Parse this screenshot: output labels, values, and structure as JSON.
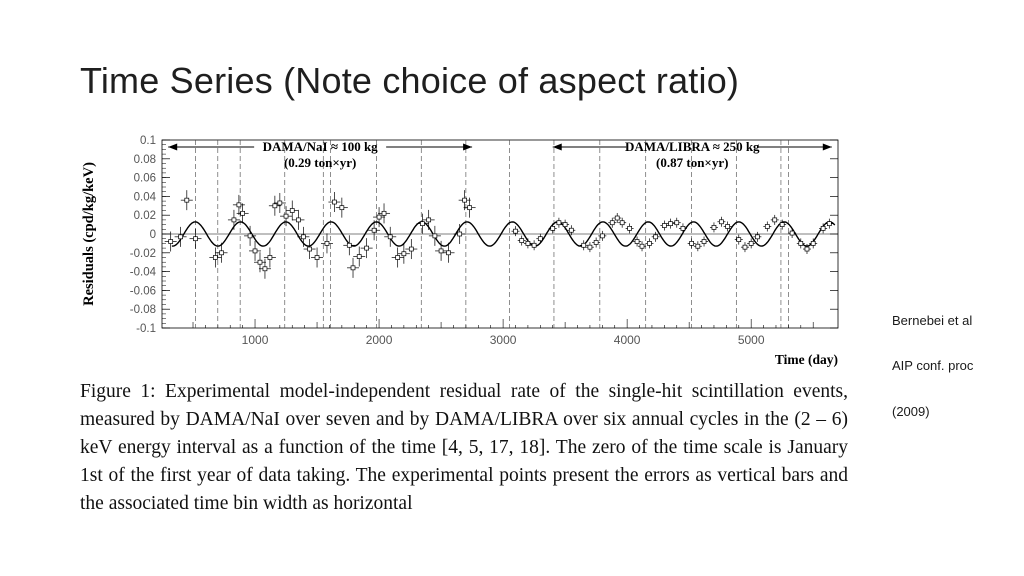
{
  "slide": {
    "title": "Time Series (Note choice of aspect ratio)",
    "side_notes": [
      "Bernebei et al",
      "AIP conf. proc",
      "(2009)"
    ]
  },
  "figure": {
    "top_label": "",
    "caption": "Figure 1: Experimental model-independent residual rate of the single-hit scintillation events, measured by DAMA/NaI over seven and by DAMA/LIBRA over six annual cycles in the (2 – 6) keV energy interval as a function of the time [4, 5, 17, 18]. The zero of the time scale is January 1st of the first year of data taking. The experimental points present the errors as vertical bars and the associated time bin width as horizontal"
  },
  "chart_data": {
    "type": "scatter",
    "title": "",
    "xlabel": "Time (day)",
    "ylabel": "Residuals (cpd/kg/keV)",
    "xlim": [
      250,
      5700
    ],
    "ylim": [
      -0.1,
      0.1
    ],
    "x_ticks": [
      1000,
      2000,
      3000,
      4000,
      5000
    ],
    "y_ticks": [
      0.1,
      0.08,
      0.06,
      0.04,
      0.02,
      0,
      -0.02,
      -0.04,
      -0.06,
      -0.08,
      -0.1
    ],
    "grid": false,
    "annotations": [
      {
        "label": "DAMA/NaI ≈ 100 kg",
        "sublabel": "(0.29 ton×yr)",
        "x_from": 300,
        "x_to": 2750
      },
      {
        "label": "DAMA/LIBRA ≈ 250 kg",
        "sublabel": "(0.87 ton×yr)",
        "x_from": 3400,
        "x_to": 5650
      }
    ],
    "cycle_boundaries": [
      520,
      700,
      880,
      1240,
      1550,
      1610,
      1980,
      2340,
      2700,
      3050,
      3410,
      3780,
      4150,
      4520,
      4880,
      5240,
      5300
    ],
    "model": {
      "amplitude": 0.0129,
      "period_days": 365.25,
      "phase_day": 152.5
    },
    "series": [
      {
        "values": [
          [
            320,
            -0.008
          ],
          [
            400,
            -0.003
          ],
          [
            450,
            0.036
          ],
          [
            520,
            -0.005
          ],
          [
            680,
            -0.025
          ],
          [
            730,
            -0.02
          ],
          [
            830,
            0.015
          ],
          [
            870,
            0.031
          ],
          [
            900,
            0.022
          ],
          [
            960,
            -0.002
          ],
          [
            1000,
            -0.018
          ],
          [
            1040,
            -0.03
          ],
          [
            1080,
            -0.037
          ],
          [
            1120,
            -0.025
          ],
          [
            1160,
            0.03
          ],
          [
            1200,
            0.033
          ],
          [
            1250,
            0.019
          ],
          [
            1300,
            0.025
          ],
          [
            1350,
            0.015
          ],
          [
            1390,
            -0.003
          ],
          [
            1440,
            -0.016
          ],
          [
            1500,
            -0.025
          ],
          [
            1580,
            -0.01
          ],
          [
            1640,
            0.034
          ],
          [
            1700,
            0.028
          ],
          [
            1760,
            -0.012
          ],
          [
            1790,
            -0.036
          ],
          [
            1840,
            -0.024
          ],
          [
            1900,
            -0.015
          ],
          [
            1960,
            0.004
          ],
          [
            2000,
            0.018
          ],
          [
            2040,
            0.022
          ],
          [
            2090,
            -0.003
          ],
          [
            2150,
            -0.025
          ],
          [
            2200,
            -0.021
          ],
          [
            2260,
            -0.016
          ],
          [
            2350,
            0.011
          ],
          [
            2400,
            0.015
          ],
          [
            2450,
            -0.002
          ],
          [
            2500,
            -0.018
          ],
          [
            2560,
            -0.02
          ],
          [
            2650,
            0.0
          ],
          [
            2690,
            0.036
          ],
          [
            2730,
            0.028
          ],
          [
            3100,
            0.003
          ],
          [
            3150,
            -0.007
          ],
          [
            3200,
            -0.01
          ],
          [
            3250,
            -0.012
          ],
          [
            3300,
            -0.005
          ],
          [
            3400,
            0.006
          ],
          [
            3450,
            0.012
          ],
          [
            3500,
            0.01
          ],
          [
            3550,
            0.004
          ],
          [
            3650,
            -0.012
          ],
          [
            3700,
            -0.014
          ],
          [
            3750,
            -0.009
          ],
          [
            3800,
            -0.002
          ],
          [
            3880,
            0.012
          ],
          [
            3920,
            0.017
          ],
          [
            3960,
            0.012
          ],
          [
            4020,
            0.006
          ],
          [
            4080,
            -0.008
          ],
          [
            4120,
            -0.013
          ],
          [
            4180,
            -0.01
          ],
          [
            4230,
            -0.003
          ],
          [
            4300,
            0.009
          ],
          [
            4350,
            0.011
          ],
          [
            4400,
            0.012
          ],
          [
            4450,
            0.006
          ],
          [
            4520,
            -0.01
          ],
          [
            4570,
            -0.013
          ],
          [
            4620,
            -0.008
          ],
          [
            4700,
            0.007
          ],
          [
            4760,
            0.013
          ],
          [
            4810,
            0.008
          ],
          [
            4900,
            -0.006
          ],
          [
            4950,
            -0.014
          ],
          [
            5000,
            -0.01
          ],
          [
            5050,
            -0.003
          ],
          [
            5130,
            0.008
          ],
          [
            5190,
            0.015
          ],
          [
            5250,
            0.01
          ],
          [
            5330,
            0.001
          ],
          [
            5400,
            -0.01
          ],
          [
            5450,
            -0.016
          ],
          [
            5500,
            -0.01
          ],
          [
            5580,
            0.006
          ],
          [
            5630,
            0.011
          ]
        ]
      }
    ]
  }
}
